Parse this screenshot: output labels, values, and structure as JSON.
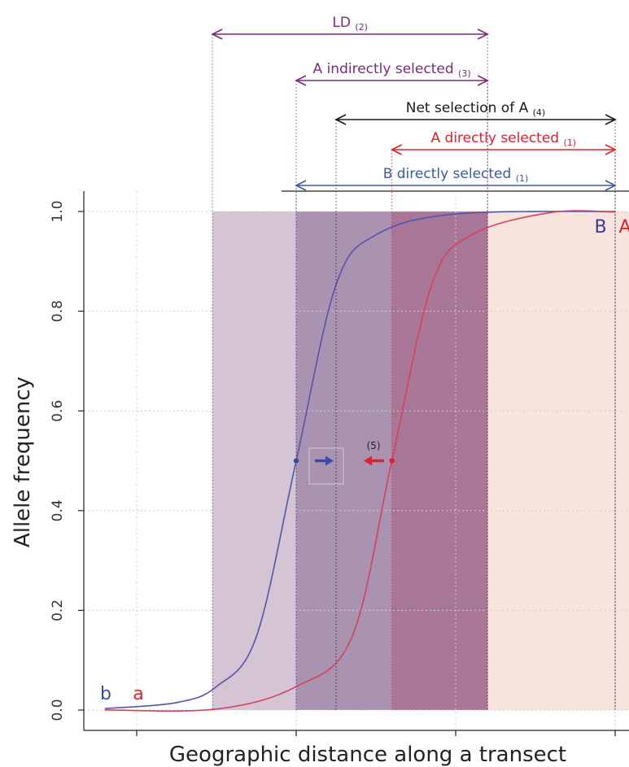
{
  "chart_data": {
    "type": "line",
    "title": "",
    "xlabel": "Geographic distance along a transect",
    "ylabel": "Allele frequency",
    "xlim": [
      -1.75,
      5.45
    ],
    "ylim": [
      0,
      1
    ],
    "y_ticks": [
      "0.0",
      "0.2",
      "0.4",
      "0.6",
      "0.8",
      "1.0"
    ],
    "x_ticks": [
      -1,
      1,
      3,
      5
    ],
    "grid": true,
    "series": [
      {
        "name": "B",
        "color": "#5555a8",
        "x": [
          -1.4,
          -0.5,
          0.0,
          0.5,
          1.0,
          1.5,
          2.0,
          3.0,
          5.0
        ],
        "y": [
          0.003,
          0.015,
          0.047,
          0.147,
          0.5,
          0.853,
          0.953,
          0.995,
          1.0
        ]
      },
      {
        "name": "A",
        "color": "#d8405a",
        "x": [
          -1.4,
          0.0,
          1.0,
          1.7,
          2.2,
          2.7,
          3.2,
          4.2,
          5.0
        ],
        "y": [
          0.0003,
          0.002,
          0.047,
          0.147,
          0.5,
          0.853,
          0.953,
          0.998,
          0.999
        ]
      }
    ],
    "regions": [
      {
        "from": -0.05,
        "to": 3.4,
        "color": "#c8b4c8",
        "label": "LD (2)"
      },
      {
        "from": 1.0,
        "to": 3.4,
        "color": "#9e84a6",
        "label": "A indirectly selected (3)"
      },
      {
        "from": 2.2,
        "to": 3.4,
        "color": "#a87090",
        "label": "A directly selected (1)"
      },
      {
        "from": 3.4,
        "to": 5.35,
        "color": "#f5dcd2",
        "label": ""
      }
    ],
    "ranges": [
      {
        "label": "LD",
        "subscript": "(2)",
        "color": "#7b2a7b",
        "from": -0.05,
        "to": 3.4
      },
      {
        "label": "A indirectly selected",
        "subscript": "(3)",
        "color": "#7b2a7b",
        "from": 1.0,
        "to": 3.4
      },
      {
        "label": "Net selection of A",
        "subscript": "(4)",
        "color": "#1a1a1a",
        "from": 1.5,
        "to": 5.0
      },
      {
        "label": "A directly selected",
        "subscript": "(1)",
        "color": "#e0202a",
        "from": 2.2,
        "to": 5.0
      },
      {
        "label": "B directly selected",
        "subscript": "(1)",
        "color": "#3a5aa0",
        "from": 1.0,
        "to": 5.0
      }
    ],
    "annotations": {
      "center_marker": "(5)",
      "b_right": "B",
      "a_right": "A",
      "b_left": "b",
      "a_left": "a"
    }
  }
}
